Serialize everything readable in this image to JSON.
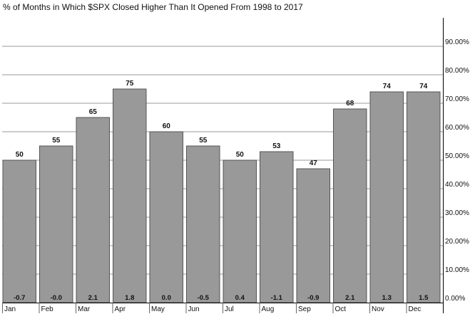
{
  "chart_data": {
    "type": "bar",
    "title": "% of Months in Which $SPX Closed Higher Than It Opened From 1998 to 2017",
    "xlabel": "",
    "ylabel": "",
    "categories": [
      "Jan",
      "Feb",
      "Mar",
      "Apr",
      "May",
      "Jun",
      "Jul",
      "Aug",
      "Sep",
      "Oct",
      "Nov",
      "Dec"
    ],
    "values": [
      50,
      55,
      65,
      75,
      60,
      55,
      50,
      53,
      47,
      68,
      74,
      74
    ],
    "value_labels": [
      "50",
      "55",
      "65",
      "75",
      "60",
      "55",
      "50",
      "53",
      "47",
      "68",
      "74",
      "74"
    ],
    "secondary_labels": [
      "-0.7",
      "-0.0",
      "2.1",
      "1.8",
      "0.0",
      "-0.5",
      "0.4",
      "-1.1",
      "-0.9",
      "2.1",
      "1.3",
      "1.5"
    ],
    "ylim": [
      0,
      100
    ],
    "y_ticks": [
      0,
      10,
      20,
      30,
      40,
      50,
      60,
      70,
      80,
      90
    ],
    "y_tick_labels": [
      "0.00%",
      "10.00%",
      "20.00%",
      "30.00%",
      "40.00%",
      "50.00%",
      "60.00%",
      "70.00%",
      "80.00%",
      "90.00%"
    ],
    "y_axis_side": "right",
    "grid": true,
    "legend": "none",
    "colors": {
      "bar_fill": "#999999",
      "bar_stroke": "#555555",
      "grid": "#999999",
      "axis": "#000000",
      "text": "#111111"
    }
  }
}
